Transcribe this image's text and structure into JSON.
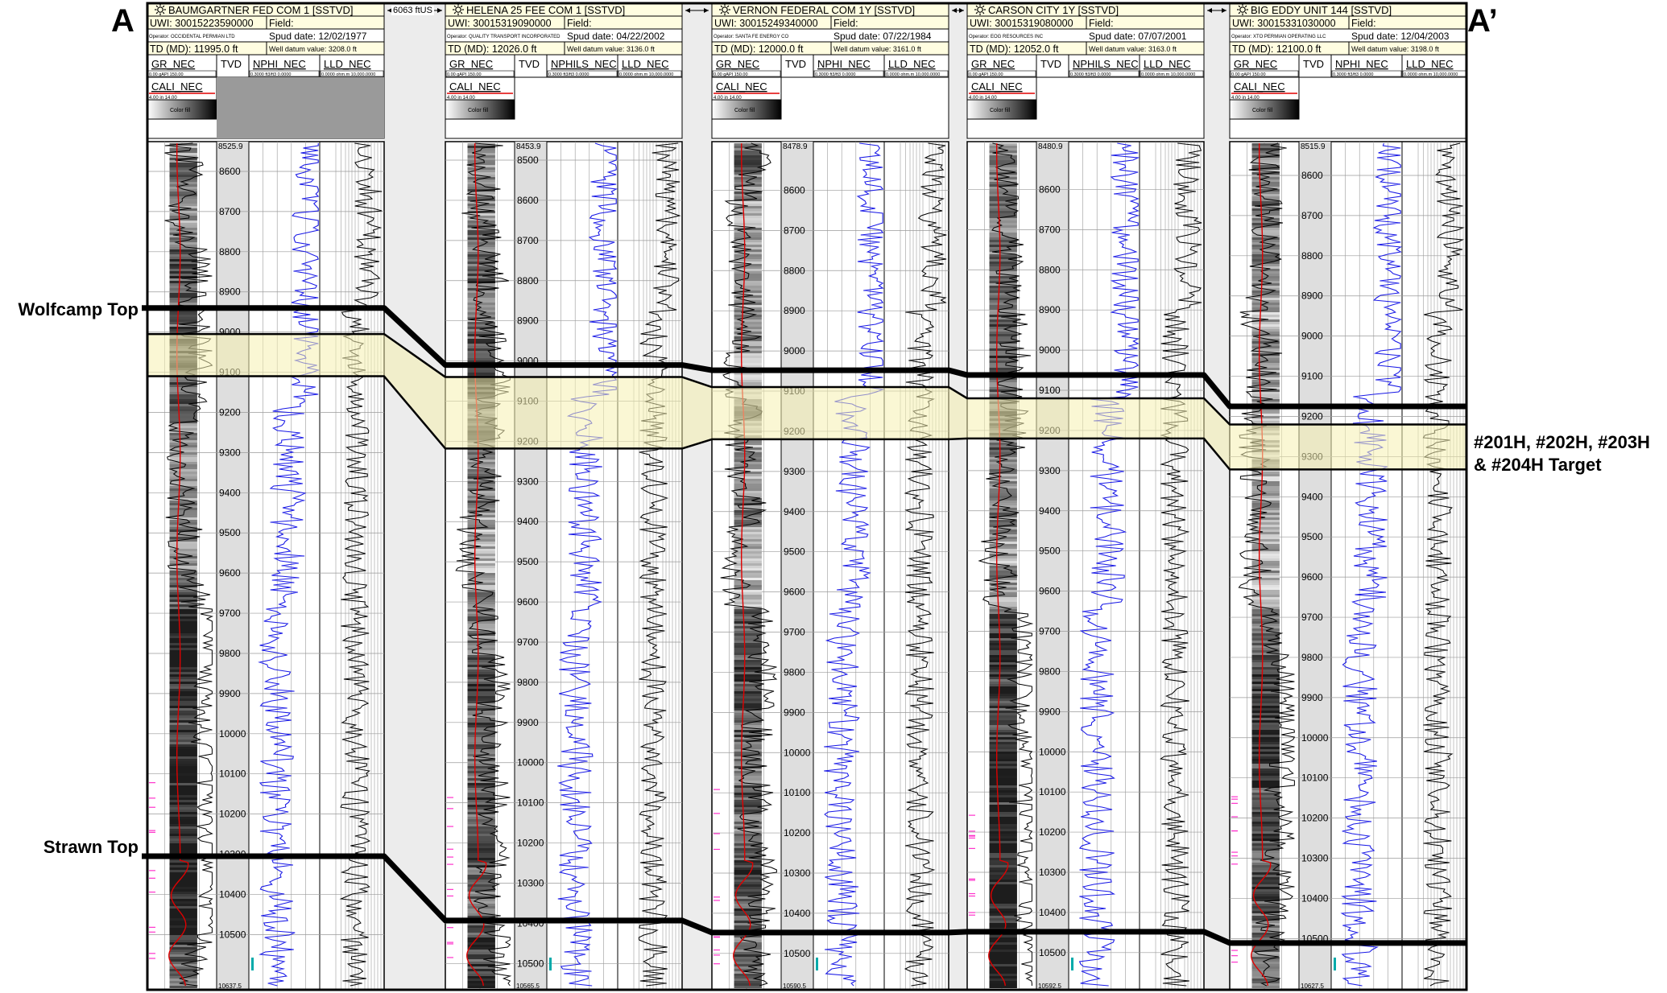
{
  "section": {
    "start_label": "A",
    "end_label": "A’"
  },
  "horizons": {
    "wolfcamp_label": "Wolfcamp Top",
    "strawn_label": "Strawn Top",
    "target_line1": "#201H, #202H, #203H",
    "target_line2": "& #204H Target"
  },
  "spacing_label": "6063 ftUS",
  "header_field_labels": {
    "uwi": "UWI:",
    "field": "Field:",
    "td": "TD (MD):",
    "spud": "Spud date:",
    "datum": "Well datum value:",
    "operator": "Operator:",
    "color_fill": "Color fill"
  },
  "curve_scales": {
    "gr": "0.00   gAPI  150.00",
    "cali": "4.00      in      14.00",
    "nphi": "0.3000  ft3/ft3  0.0000",
    "lld": "0.0000 ohm.m 10,000.0000"
  },
  "wells": [
    {
      "name": "BAUMGARTNER FED COM 1 [SSTVD]",
      "uwi": "30015223590000",
      "td": "11995.0 ft",
      "spud": "12/02/1977",
      "datum": "3208.0 ft",
      "operator": "OCCIDENTAL PERMIAN LTD",
      "tracks": [
        "GR_NEC",
        "TVD",
        "NPHI_NEC",
        "LLD_NEC"
      ],
      "cali": "CALI_NEC",
      "top_depth": "8525.9",
      "bottom_depth": "10637.5",
      "depth_ticks": [
        "8600",
        "8700",
        "8800",
        "8900",
        "9000",
        "9100",
        "9200",
        "9300",
        "9400",
        "9500",
        "9600",
        "9700",
        "9800",
        "9900",
        "10000",
        "10100",
        "10200",
        "10300",
        "10400",
        "10500"
      ]
    },
    {
      "name": "HELENA 25 FEE COM 1 [SSTVD]",
      "uwi": "30015319090000",
      "td": "12026.0 ft",
      "spud": "04/22/2002",
      "datum": "3136.0 ft",
      "operator": "QUALITY TRANSPORT INCORPORATED",
      "tracks": [
        "GR_NEC",
        "TVD",
        "NPHILS_NEC",
        "LLD_NEC"
      ],
      "cali": "CALI_NEC",
      "top_depth": "8453.9",
      "bottom_depth": "10565.5",
      "depth_ticks": [
        "8500",
        "8600",
        "8700",
        "8800",
        "8900",
        "9000",
        "9100",
        "9200",
        "9300",
        "9400",
        "9500",
        "9600",
        "9700",
        "9800",
        "9900",
        "10000",
        "10100",
        "10200",
        "10300",
        "10400",
        "10500"
      ]
    },
    {
      "name": "VERNON FEDERAL COM 1Y [SSTVD]",
      "uwi": "30015249340000",
      "td": "12000.0 ft",
      "spud": "07/22/1984",
      "datum": "3161.0 ft",
      "operator": "SANTA FE ENERGY CO",
      "tracks": [
        "GR_NEC",
        "TVD",
        "NPHI_NEC",
        "LLD_NEC"
      ],
      "cali": "CALI_NEC",
      "top_depth": "8478.9",
      "bottom_depth": "10590.5",
      "depth_ticks": [
        "8600",
        "8700",
        "8800",
        "8900",
        "9000",
        "9100",
        "9200",
        "9300",
        "9400",
        "9500",
        "9600",
        "9700",
        "9800",
        "9900",
        "10000",
        "10100",
        "10200",
        "10300",
        "10400",
        "10500"
      ]
    },
    {
      "name": "CARSON CITY 1Y [SSTVD]",
      "uwi": "30015319080000",
      "td": "12052.0 ft",
      "spud": "07/07/2001",
      "datum": "3163.0 ft",
      "operator": "EOG RESOURCES INC",
      "tracks": [
        "GR_NEC",
        "TVD",
        "NPHILS_NEC",
        "LLD_NEC"
      ],
      "cali": "CALI_NEC",
      "top_depth": "8480.9",
      "bottom_depth": "10592.5",
      "depth_ticks": [
        "8600",
        "8700",
        "8800",
        "8900",
        "9000",
        "9100",
        "9200",
        "9300",
        "9400",
        "9500",
        "9600",
        "9700",
        "9800",
        "9900",
        "10000",
        "10100",
        "10200",
        "10300",
        "10400",
        "10500"
      ]
    },
    {
      "name": "BIG EDDY UNIT 144 [SSTVD]",
      "uwi": "30015331030000",
      "td": "12100.0 ft",
      "spud": "12/04/2003",
      "datum": "3198.0 ft",
      "operator": "XTO PERMIAN OPERATING LLC",
      "tracks": [
        "GR_NEC",
        "TVD",
        "NPHI_NEC",
        "LLD_NEC"
      ],
      "cali": "CALI_NEC",
      "top_depth": "8515.9",
      "bottom_depth": "10627.5",
      "depth_ticks": [
        "8600",
        "8700",
        "8800",
        "8900",
        "9000",
        "9100",
        "9200",
        "9300",
        "9400",
        "9500",
        "9600",
        "9700",
        "9800",
        "9900",
        "10000",
        "10100",
        "10200",
        "10300",
        "10400",
        "10500"
      ]
    }
  ],
  "correlation_depths": {
    "wolfcamp_top": [
      8940,
      9010,
      9048,
      9062,
      9175
    ],
    "target_top": [
      9005,
      9040,
      9090,
      9120,
      9220
    ],
    "target_base": [
      9110,
      9218,
      9220,
      9220,
      9332
    ],
    "strawn_top": [
      10305,
      10393,
      10448,
      10448,
      10511
    ]
  },
  "colors": {
    "gr_curve": "#000000",
    "cali_curve": "#e00000",
    "nphi_curve": "#1a1ae6",
    "lld_curve": "#000000",
    "header_fill": "#fffde0",
    "target_fill": "#f5f1b0",
    "tvd_track": "#dedede",
    "gap_fill": "#ececec",
    "pink_marks": "#ff33cc",
    "cyan_marks": "#00aaaa"
  },
  "icons": {
    "well_symbol": "oil-well-sun-icon"
  }
}
